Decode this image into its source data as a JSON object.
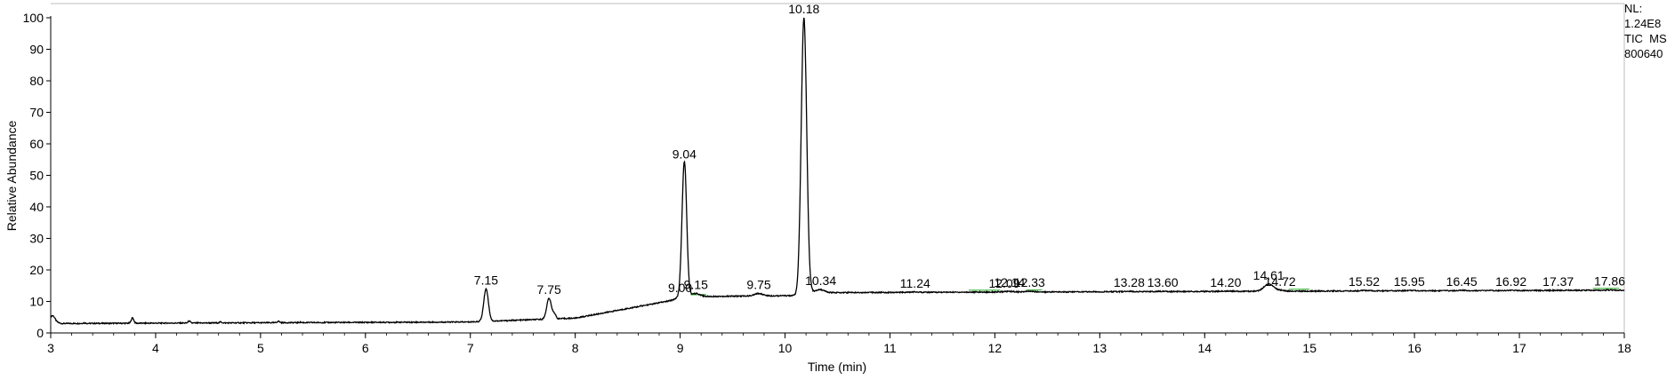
{
  "chart_data": {
    "type": "line",
    "title": "",
    "xlabel": "Time (min)",
    "ylabel": "Relative Abundance",
    "xlim": [
      3,
      18
    ],
    "ylim": [
      0,
      100
    ],
    "x_ticks": [
      3,
      4,
      5,
      6,
      7,
      8,
      9,
      10,
      11,
      12,
      13,
      14,
      15,
      16,
      17,
      18
    ],
    "y_ticks": [
      0,
      10,
      20,
      30,
      40,
      50,
      60,
      70,
      80,
      90,
      100
    ],
    "grid": false,
    "series_color": "#000000",
    "integration_color": "#22aa22",
    "info": [
      "NL:",
      "1.24E8",
      "TIC  MS",
      "800640"
    ],
    "peaks": [
      {
        "rt": 7.15,
        "label": "7.15",
        "height": 14.0,
        "width": 0.022
      },
      {
        "rt": 7.75,
        "label": "7.75",
        "height": 11.0,
        "width": 0.022
      },
      {
        "rt": 9.0,
        "label": "9.00",
        "height": 11.5,
        "width": 0.04
      },
      {
        "rt": 9.04,
        "label": "9.04",
        "height": 54.0,
        "width": 0.022
      },
      {
        "rt": 9.15,
        "label": "9.15",
        "height": 12.5,
        "width": 0.04
      },
      {
        "rt": 9.75,
        "label": "9.75",
        "height": 12.5,
        "width": 0.04
      },
      {
        "rt": 10.18,
        "label": "10.18",
        "height": 100.0,
        "width": 0.026
      },
      {
        "rt": 10.34,
        "label": "10.34",
        "height": 13.8,
        "width": 0.04
      },
      {
        "rt": 11.24,
        "label": "11.24",
        "height": 13.0,
        "width": 0.04
      },
      {
        "rt": 12.09,
        "label": "12.09",
        "height": 13.0,
        "width": 0.04
      },
      {
        "rt": 12.14,
        "label": "12.14",
        "height": 13.2,
        "width": 0.04
      },
      {
        "rt": 12.33,
        "label": "12.33",
        "height": 13.2,
        "width": 0.04
      },
      {
        "rt": 13.28,
        "label": "13.28",
        "height": 13.2,
        "width": 0.04
      },
      {
        "rt": 13.6,
        "label": "13.60",
        "height": 13.2,
        "width": 0.04
      },
      {
        "rt": 14.2,
        "label": "14.20",
        "height": 13.3,
        "width": 0.04
      },
      {
        "rt": 14.61,
        "label": "14.61",
        "height": 15.5,
        "width": 0.045
      },
      {
        "rt": 14.72,
        "label": "14.72",
        "height": 13.5,
        "width": 0.04
      },
      {
        "rt": 15.52,
        "label": "15.52",
        "height": 13.5,
        "width": 0.04
      },
      {
        "rt": 15.95,
        "label": "15.95",
        "height": 13.5,
        "width": 0.04
      },
      {
        "rt": 16.45,
        "label": "16.45",
        "height": 13.5,
        "width": 0.04
      },
      {
        "rt": 16.92,
        "label": "16.92",
        "height": 13.5,
        "width": 0.04
      },
      {
        "rt": 17.37,
        "label": "17.37",
        "height": 13.5,
        "width": 0.04
      },
      {
        "rt": 17.86,
        "label": "17.86",
        "height": 13.6,
        "width": 0.04
      }
    ],
    "minor_peaks": [
      {
        "rt": 3.02,
        "height": 5.5,
        "width": 0.02
      },
      {
        "rt": 3.32,
        "height": 3.2,
        "width": 0.01
      },
      {
        "rt": 3.78,
        "height": 4.8,
        "width": 0.012
      },
      {
        "rt": 4.32,
        "height": 3.8,
        "width": 0.01
      },
      {
        "rt": 4.62,
        "height": 3.5,
        "width": 0.01
      },
      {
        "rt": 5.17,
        "height": 3.7,
        "width": 0.012
      },
      {
        "rt": 5.38,
        "height": 3.4,
        "width": 0.01
      },
      {
        "rt": 7.8,
        "height": 6.0,
        "width": 0.015
      }
    ],
    "integration_marks": [
      [
        9.1,
        9.25
      ],
      [
        11.75,
        12.05
      ],
      [
        12.3,
        12.45
      ],
      [
        14.8,
        15.0
      ],
      [
        17.7,
        17.95
      ]
    ]
  }
}
